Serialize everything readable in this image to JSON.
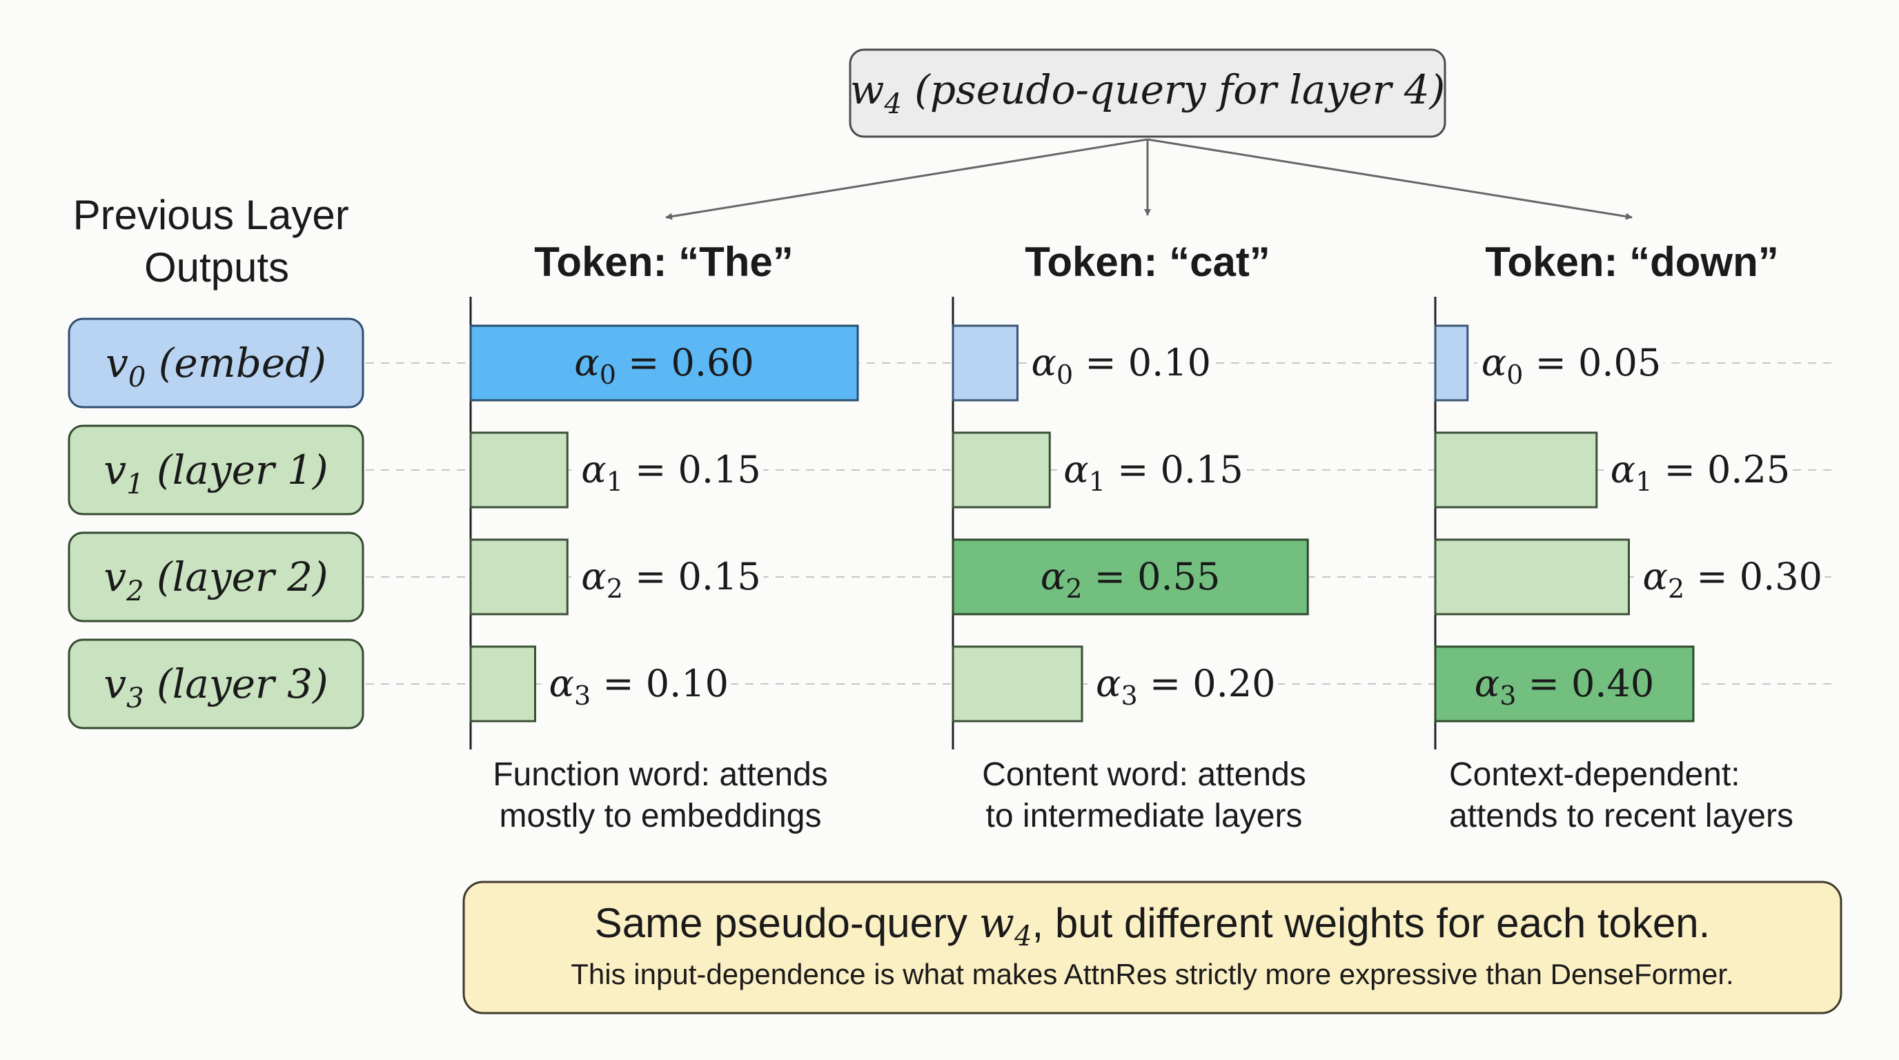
{
  "query": {
    "symbol": "w",
    "subscript": "4",
    "rest": " (pseudo-query for layer 4)"
  },
  "left_panel": {
    "title_lines": [
      "Previous Layer",
      "Outputs"
    ],
    "layers": [
      {
        "symbol": "v",
        "subscript": "0",
        "label": " (embed)",
        "kind": "embed"
      },
      {
        "symbol": "v",
        "subscript": "1",
        "label": " (layer 1)",
        "kind": "layer"
      },
      {
        "symbol": "v",
        "subscript": "2",
        "label": " (layer 2)",
        "kind": "layer"
      },
      {
        "symbol": "v",
        "subscript": "3",
        "label": " (layer 3)",
        "kind": "layer"
      }
    ]
  },
  "weight_symbol": "α",
  "tokens": [
    {
      "title": "Token: “The”",
      "weights": [
        {
          "subscript": "0",
          "value": 0.6,
          "text": "0.60",
          "style": "highlight-blue"
        },
        {
          "subscript": "1",
          "value": 0.15,
          "text": "0.15",
          "style": "light-green"
        },
        {
          "subscript": "2",
          "value": 0.15,
          "text": "0.15",
          "style": "light-green"
        },
        {
          "subscript": "3",
          "value": 0.1,
          "text": "0.10",
          "style": "light-green"
        }
      ],
      "caption_lines": [
        "Function word: attends",
        "mostly to embeddings"
      ]
    },
    {
      "title": "Token: “cat”",
      "weights": [
        {
          "subscript": "0",
          "value": 0.1,
          "text": "0.10",
          "style": "light-blue"
        },
        {
          "subscript": "1",
          "value": 0.15,
          "text": "0.15",
          "style": "light-green"
        },
        {
          "subscript": "2",
          "value": 0.55,
          "text": "0.55",
          "style": "highlight-green"
        },
        {
          "subscript": "3",
          "value": 0.2,
          "text": "0.20",
          "style": "light-green"
        }
      ],
      "caption_lines": [
        "Content word: attends",
        "to intermediate layers"
      ]
    },
    {
      "title": "Token: “down”",
      "weights": [
        {
          "subscript": "0",
          "value": 0.05,
          "text": "0.05",
          "style": "light-blue"
        },
        {
          "subscript": "1",
          "value": 0.25,
          "text": "0.25",
          "style": "light-green"
        },
        {
          "subscript": "2",
          "value": 0.3,
          "text": "0.30",
          "style": "light-green"
        },
        {
          "subscript": "3",
          "value": 0.4,
          "text": "0.40",
          "style": "highlight-green"
        }
      ],
      "caption_lines": [
        "Context-dependent:",
        "attends to recent layers"
      ]
    }
  ],
  "summary": {
    "line1_before": "Same pseudo-query ",
    "line1_symbol": "w",
    "line1_subscript": "4",
    "line1_after": ", but different weights for each token.",
    "line2": "This input-dependence is what makes AttnRes strictly more expressive than DenseFormer."
  },
  "colors": {
    "background": "#fbfbf9",
    "query_box_fill": "#ececec",
    "query_box_stroke": "#4a4a4a",
    "embed_fill": "#b9d4f2",
    "embed_stroke": "#2f4f6f",
    "layer_fill": "#c9e2bf",
    "layer_stroke": "#344a30",
    "highlight_blue": "#5bb8f5",
    "light_blue": "#b9d4f2",
    "highlight_green": "#72bf80",
    "light_green": "#c9e2bf",
    "summary_fill": "#fbefc4",
    "summary_stroke": "#3f3a2a",
    "axis": "#222222",
    "arrow": "#666666",
    "dashed": "#c6c6c6",
    "text": "#1a1a1a"
  }
}
